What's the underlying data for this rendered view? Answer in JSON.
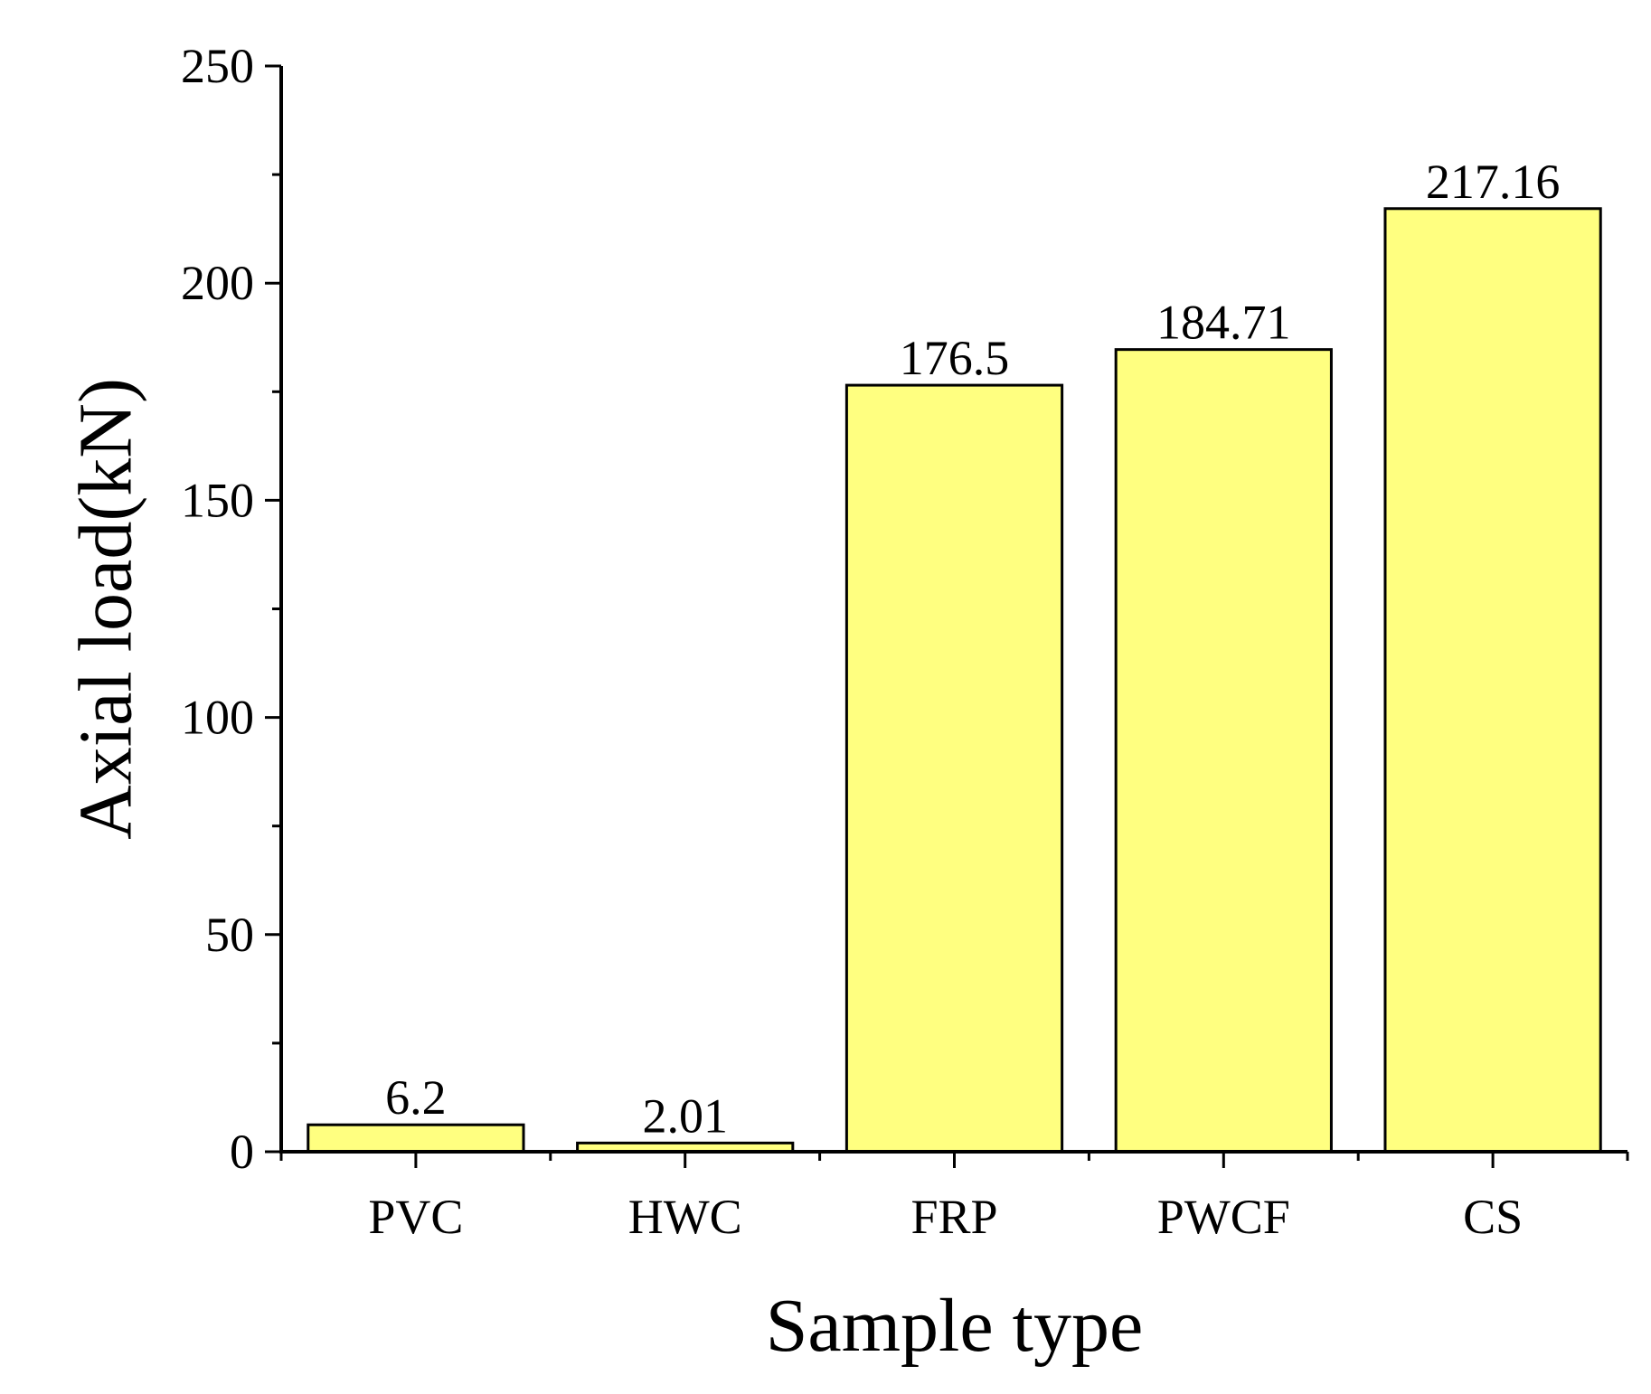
{
  "chart_data": {
    "type": "bar",
    "categories": [
      "PVC",
      "HWC",
      "FRP",
      "PWCF",
      "CS"
    ],
    "values": [
      6.2,
      2.01,
      176.5,
      184.71,
      217.16
    ],
    "data_labels": [
      "6.2",
      "2.01",
      "176.5",
      "184.71",
      "217.16"
    ],
    "xlabel": "Sample type",
    "ylabel": "Axial load(kN)",
    "ylim": [
      0,
      250
    ],
    "yticks": [
      0,
      50,
      100,
      150,
      200,
      250
    ],
    "ytick_labels": [
      "0",
      "50",
      "100",
      "150",
      "200",
      "250"
    ],
    "y_minor_step": 25,
    "bar_color": "#ffff80",
    "grid": false,
    "legend": "none"
  }
}
